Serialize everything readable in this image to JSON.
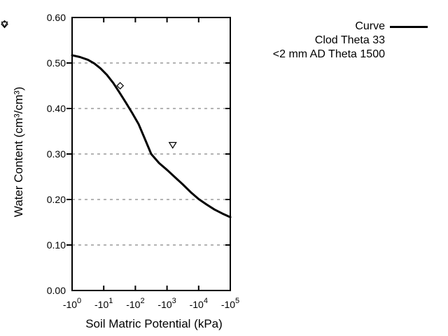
{
  "chart_data": {
    "type": "line",
    "title": "",
    "xlabel": "Soil Matric Potential (kPa)",
    "ylabel": "Water Content (cm³/cm³)",
    "legend_position": "top-right-outside",
    "colors": {
      "line": "#000000",
      "grid": "#9a9a9a",
      "background": "#ffffff",
      "text": "#000000",
      "marker_fill": "#ffffff"
    },
    "x_axis": {
      "scale": "negative-log10-kPa",
      "min_exp": 0,
      "max_exp": 5,
      "tick_labels": [
        {
          "base": "-10",
          "exp": "0"
        },
        {
          "base": "-10",
          "exp": "1"
        },
        {
          "base": "-10",
          "exp": "2"
        },
        {
          "base": "-10",
          "exp": "3"
        },
        {
          "base": "-10",
          "exp": "4"
        },
        {
          "base": "-10",
          "exp": "5"
        }
      ]
    },
    "y_axis": {
      "min": 0.0,
      "max": 0.6,
      "grid": true,
      "tick_labels": [
        "0.00",
        "0.10",
        "0.20",
        "0.30",
        "0.40",
        "0.50",
        "0.60"
      ]
    },
    "series": [
      {
        "name": "Curve",
        "type": "line",
        "points_log10kpa_theta": [
          [
            0.0,
            0.517
          ],
          [
            0.25,
            0.513
          ],
          [
            0.5,
            0.507
          ],
          [
            0.7,
            0.499
          ],
          [
            0.9,
            0.488
          ],
          [
            1.1,
            0.474
          ],
          [
            1.3,
            0.456
          ],
          [
            1.5,
            0.435
          ],
          [
            1.7,
            0.413
          ],
          [
            1.9,
            0.39
          ],
          [
            2.1,
            0.366
          ],
          [
            2.3,
            0.333
          ],
          [
            2.5,
            0.3
          ],
          [
            2.75,
            0.28
          ],
          [
            3.0,
            0.265
          ],
          [
            3.25,
            0.249
          ],
          [
            3.5,
            0.233
          ],
          [
            3.75,
            0.216
          ],
          [
            4.0,
            0.201
          ],
          [
            4.25,
            0.189
          ],
          [
            4.5,
            0.178
          ],
          [
            4.75,
            0.169
          ],
          [
            5.0,
            0.161
          ]
        ]
      },
      {
        "name": "Clod Theta 33",
        "type": "scatter",
        "marker": "open-diamond",
        "points_log10kpa_theta": [
          [
            1.52,
            0.45
          ]
        ]
      },
      {
        "name": "<2 mm AD Theta 1500",
        "type": "scatter",
        "marker": "open-triangle-down",
        "points_log10kpa_theta": [
          [
            3.18,
            0.32
          ]
        ]
      }
    ]
  }
}
